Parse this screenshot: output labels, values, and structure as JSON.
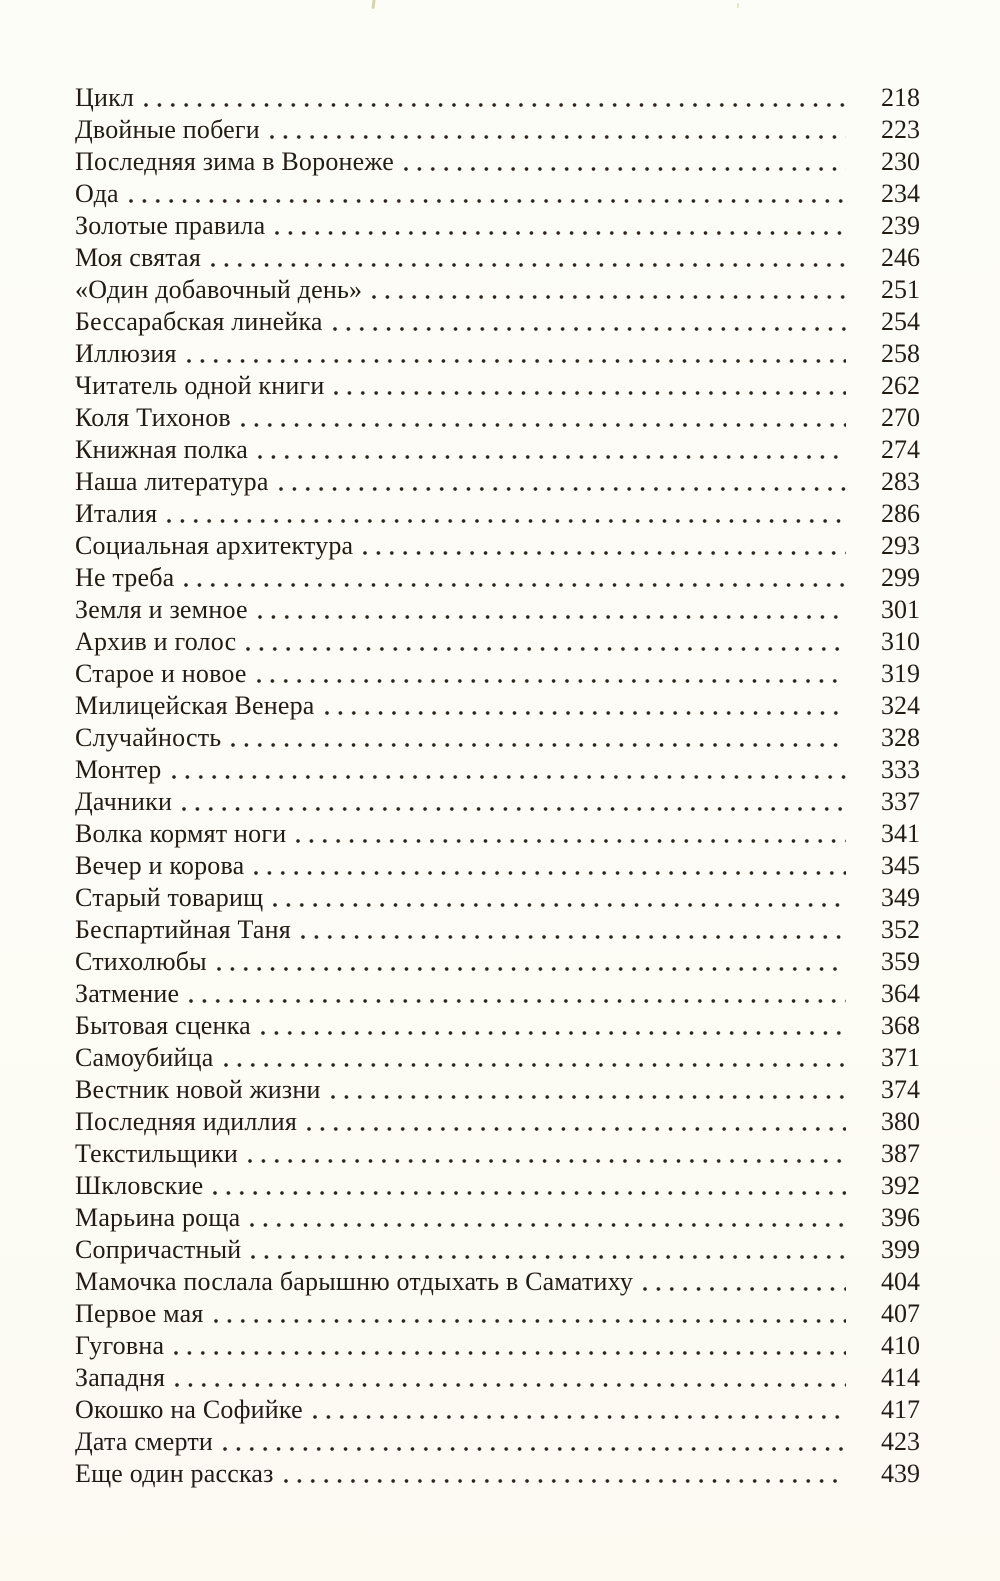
{
  "page": {
    "kind": "book-table-of-contents-scan",
    "language": "ru",
    "background_color": "#fdfcf6",
    "ink_color": "#221c14"
  },
  "toc": {
    "entries": [
      {
        "title": "Цикл",
        "page": "218"
      },
      {
        "title": "Двойные побеги",
        "page": "223"
      },
      {
        "title": "Последняя зима в Воронеже",
        "page": "230"
      },
      {
        "title": "Ода",
        "page": "234"
      },
      {
        "title": "Золотые правила",
        "page": "239"
      },
      {
        "title": "Моя святая",
        "page": "246"
      },
      {
        "title": "«Один добавочный день»",
        "page": "251"
      },
      {
        "title": "Бессарабская линейка",
        "page": "254"
      },
      {
        "title": "Иллюзия",
        "page": "258"
      },
      {
        "title": "Читатель одной книги",
        "page": "262"
      },
      {
        "title": "Коля Тихонов",
        "page": "270"
      },
      {
        "title": "Книжная полка",
        "page": "274"
      },
      {
        "title": "Наша литература",
        "page": "283"
      },
      {
        "title": "Италия",
        "page": "286"
      },
      {
        "title": "Социальная архитектура",
        "page": "293"
      },
      {
        "title": "Не треба",
        "page": "299"
      },
      {
        "title": "Земля и земное",
        "page": "301"
      },
      {
        "title": "Архив и голос",
        "page": "310"
      },
      {
        "title": "Старое и новое",
        "page": "319"
      },
      {
        "title": "Милицейская Венера",
        "page": "324"
      },
      {
        "title": "Случайность",
        "page": "328"
      },
      {
        "title": "Монтер",
        "page": "333"
      },
      {
        "title": "Дачники",
        "page": "337"
      },
      {
        "title": "Волка кормят ноги",
        "page": "341"
      },
      {
        "title": "Вечер и корова",
        "page": "345"
      },
      {
        "title": "Старый товарищ",
        "page": "349"
      },
      {
        "title": "Беспартийная Таня",
        "page": "352"
      },
      {
        "title": "Стихолюбы",
        "page": "359"
      },
      {
        "title": "Затмение",
        "page": "364"
      },
      {
        "title": "Бытовая сценка",
        "page": "368"
      },
      {
        "title": "Самоубийца",
        "page": "371"
      },
      {
        "title": "Вестник новой жизни",
        "page": "374"
      },
      {
        "title": "Последняя идиллия",
        "page": "380"
      },
      {
        "title": "Текстильщики",
        "page": "387"
      },
      {
        "title": "Шкловские",
        "page": "392"
      },
      {
        "title": "Марьина роща",
        "page": "396"
      },
      {
        "title": "Сопричастный",
        "page": "399"
      },
      {
        "title": "Мамочка послала барышню отдыхать в Саматиху",
        "page": "404"
      },
      {
        "title": "Первое мая",
        "page": "407"
      },
      {
        "title": "Гуговна",
        "page": "410"
      },
      {
        "title": "Западня",
        "page": "414"
      },
      {
        "title": "Окошко на Софийке",
        "page": "417"
      },
      {
        "title": "Дата смерти",
        "page": "423"
      },
      {
        "title": "Еще один рассказ",
        "page": "439"
      }
    ]
  }
}
